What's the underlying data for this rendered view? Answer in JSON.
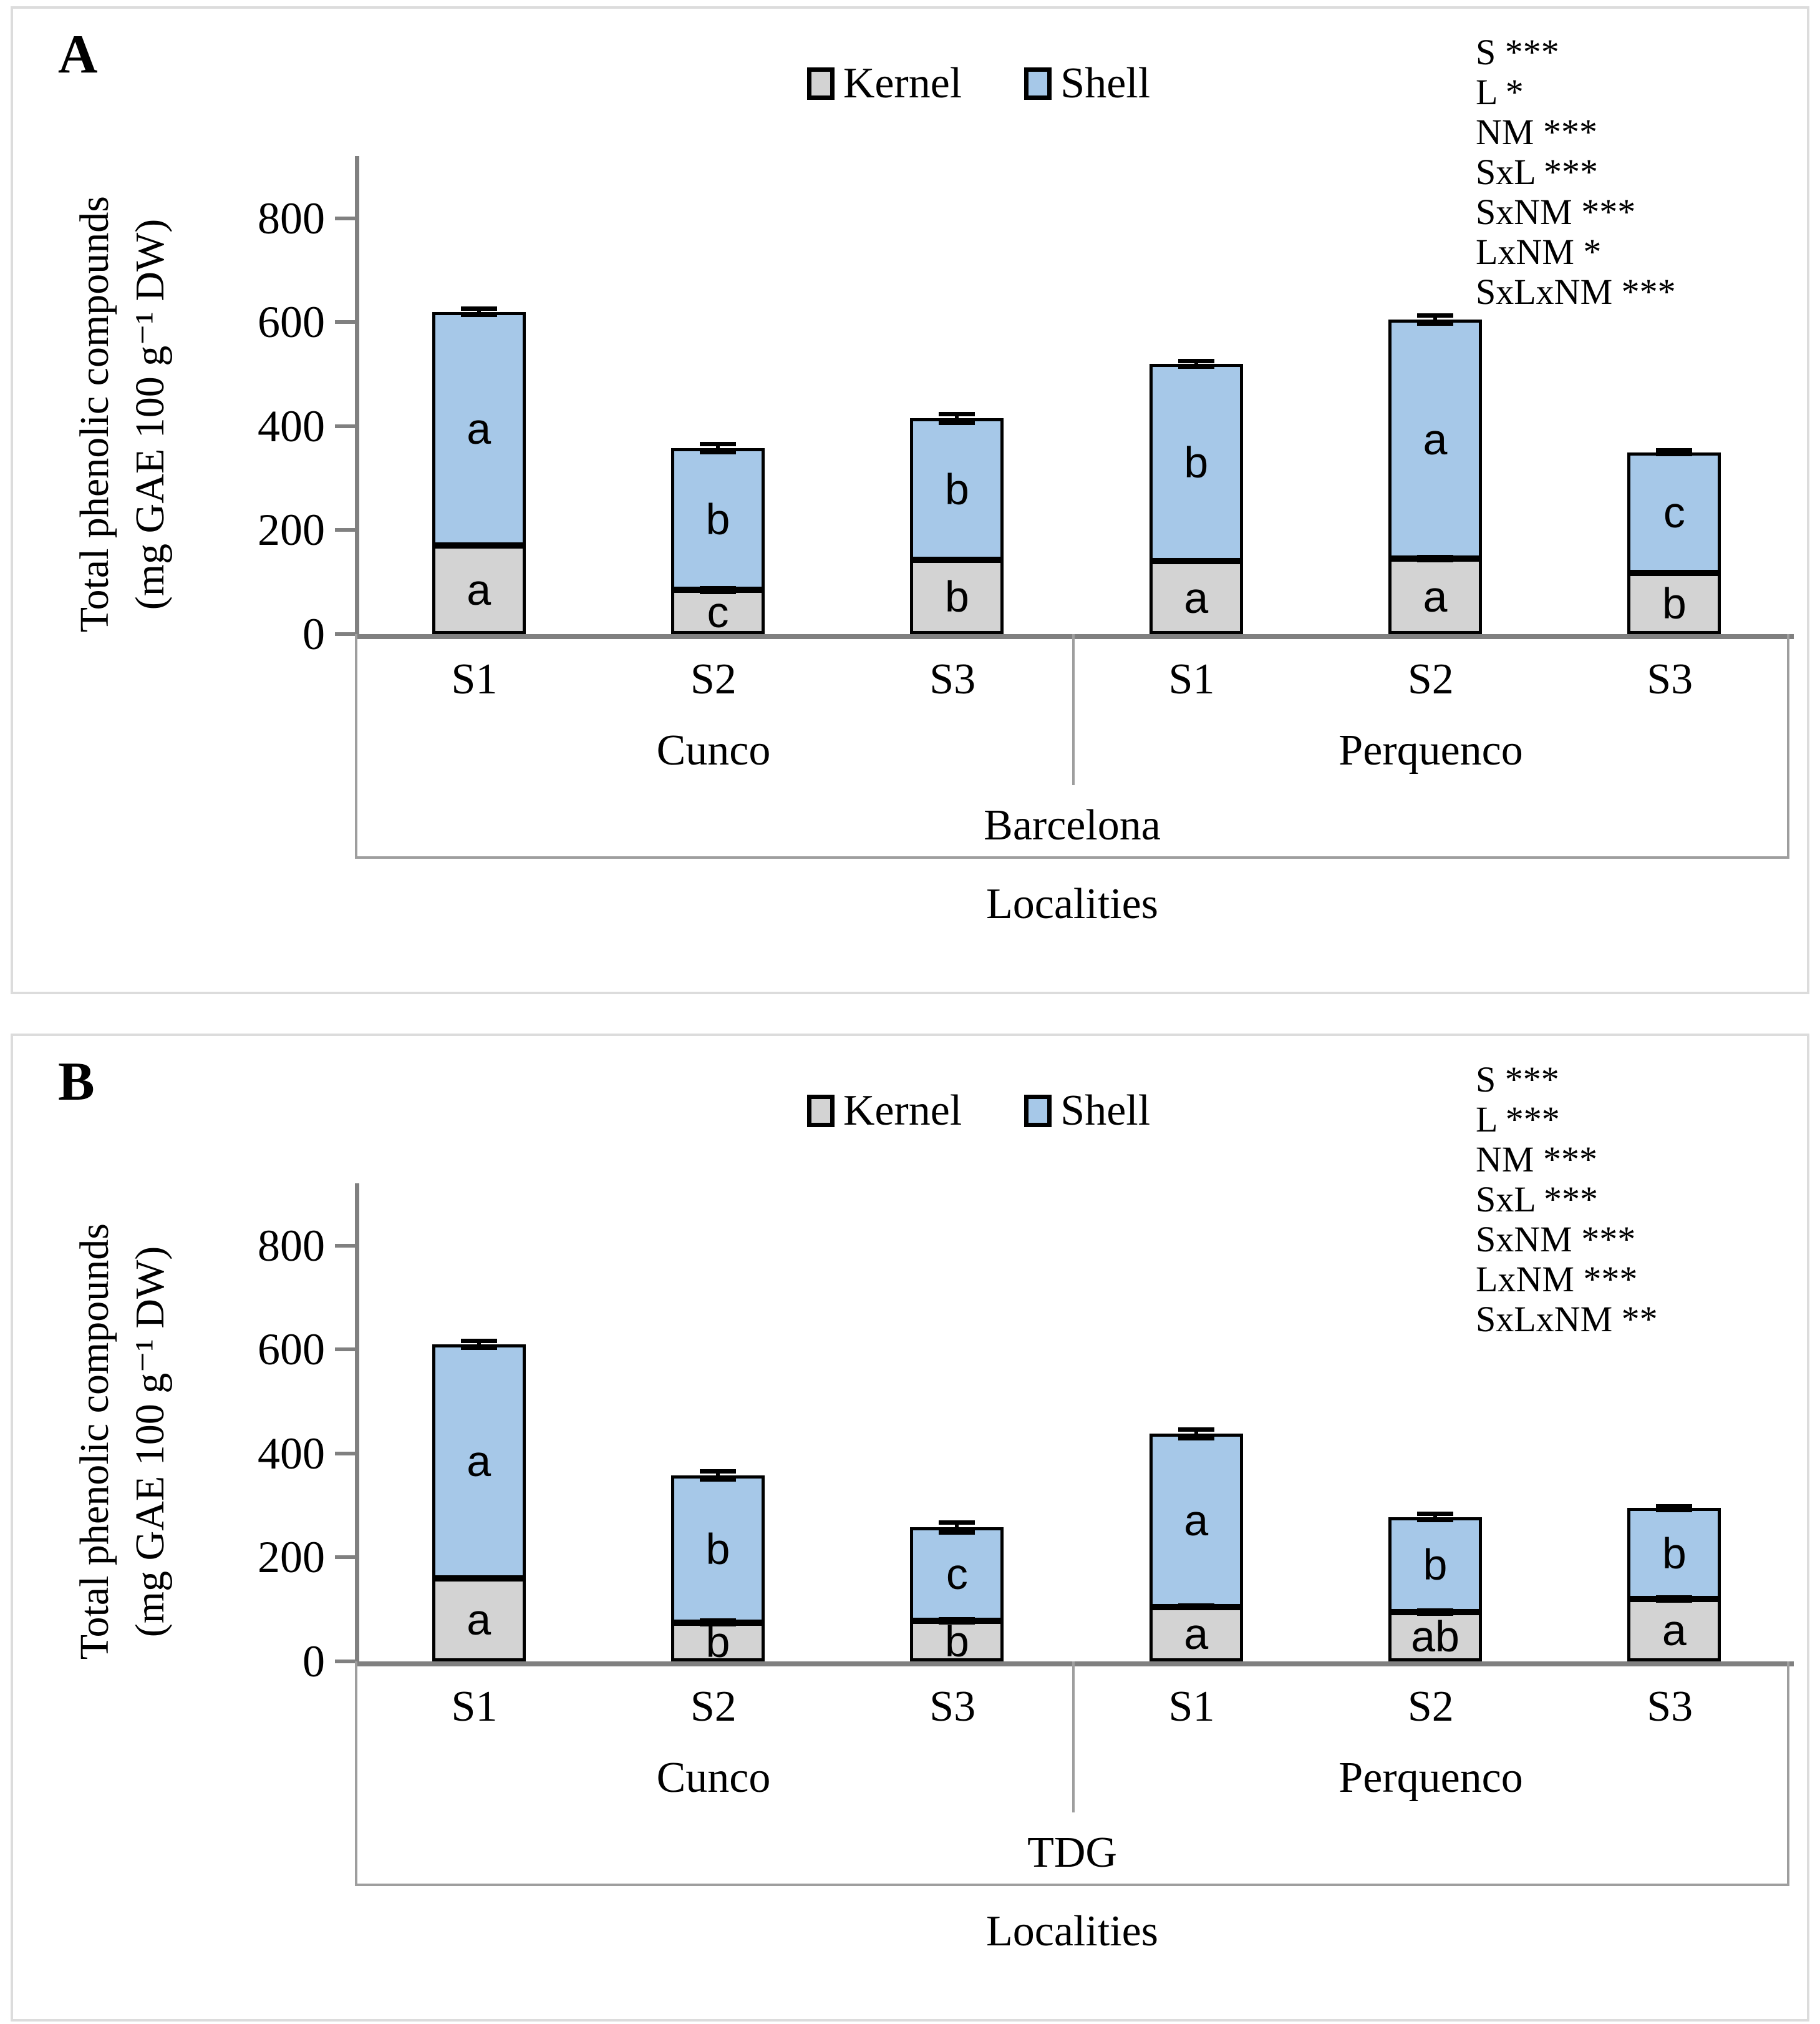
{
  "colors": {
    "kernel_fill": "#d3d3d3",
    "shell_fill": "#a6c8e8",
    "bar_border": "#000000",
    "axis_gray": "#808080",
    "table_line": "#9e9e9e",
    "error_bar": "#000000",
    "text": "#000000"
  },
  "legend": {
    "items": [
      {
        "label": "Kernel",
        "swatch": "kernel-swatch"
      },
      {
        "label": "Shell",
        "swatch": "shell-swatch"
      }
    ]
  },
  "chart_data": [
    {
      "type": "bar",
      "stacked": true,
      "panel_label": "A",
      "ylabel_line1": "Total phenolic compounds",
      "ylabel_line2": "(mg GAE 100 g⁻¹ DW)",
      "xlabel": "Localities",
      "location_label": "Barcelona",
      "groups": [
        "Cunco",
        "Perquenco"
      ],
      "categories": [
        "S1",
        "S2",
        "S3",
        "S1",
        "S2",
        "S3"
      ],
      "yticks": [
        0,
        200,
        400,
        600,
        800
      ],
      "ylim": [
        0,
        920
      ],
      "grid": false,
      "legend_position": "top-center",
      "series": [
        {
          "name": "Kernel",
          "values": [
            170,
            85,
            143,
            140,
            145,
            118
          ]
        },
        {
          "name": "Shell",
          "values": [
            450,
            273,
            272,
            380,
            460,
            232
          ]
        }
      ],
      "stack_totals": [
        620,
        358,
        415,
        520,
        605,
        350
      ],
      "kernel_error": [
        6,
        8,
        5,
        6,
        7,
        6
      ],
      "total_error": [
        10,
        12,
        13,
        10,
        12,
        8
      ],
      "kernel_letters": [
        "a",
        "c",
        "b",
        "a",
        "a",
        "b"
      ],
      "shell_letters": [
        "a",
        "b",
        "b",
        "b",
        "a",
        "c"
      ],
      "anova_lines": [
        "S ***",
        "L *",
        "NM ***",
        "SxL ***",
        "SxNM ***",
        "LxNM *",
        "SxLxNM ***"
      ]
    },
    {
      "type": "bar",
      "stacked": true,
      "panel_label": "B",
      "ylabel_line1": "Total phenolic compounds",
      "ylabel_line2": "(mg GAE 100 g⁻¹ DW)",
      "xlabel": "Localities",
      "location_label": "TDG",
      "groups": [
        "Cunco",
        "Perquenco"
      ],
      "categories": [
        "S1",
        "S2",
        "S3",
        "S1",
        "S2",
        "S3"
      ],
      "yticks": [
        0,
        200,
        400,
        600,
        800
      ],
      "ylim": [
        0,
        920
      ],
      "grid": false,
      "legend_position": "top-center",
      "series": [
        {
          "name": "Kernel",
          "values": [
            160,
            75,
            78,
            105,
            95,
            120
          ]
        },
        {
          "name": "Shell",
          "values": [
            450,
            283,
            180,
            333,
            183,
            175
          ]
        }
      ],
      "stack_totals": [
        610,
        358,
        258,
        438,
        278,
        295
      ],
      "kernel_error": [
        6,
        8,
        7,
        7,
        7,
        7
      ],
      "total_error": [
        11,
        12,
        14,
        13,
        10,
        8
      ],
      "kernel_letters": [
        "a",
        "b",
        "b",
        "a",
        "ab",
        "a"
      ],
      "shell_letters": [
        "a",
        "b",
        "c",
        "a",
        "b",
        "b"
      ],
      "anova_lines": [
        "S ***",
        "L ***",
        "NM ***",
        "SxL ***",
        "SxNM ***",
        "LxNM ***",
        "SxLxNM **"
      ]
    }
  ]
}
